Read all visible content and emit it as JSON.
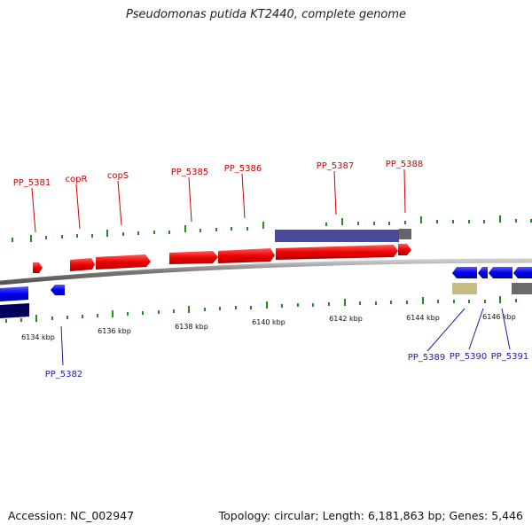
{
  "title": "Pseudomonas putida KT2440, complete genome",
  "footer": {
    "accession": "Accession: NC_002947",
    "summary": "Topology: circular; Length: 6,181,863 bp; Genes: 5,446"
  },
  "colors": {
    "forward_gene": "#ff0000",
    "reverse_gene": "#0000ff",
    "forward_label": "#cc0000",
    "reverse_label": "#1a1aaa",
    "backbone": "#888888",
    "ticks": "#228B22"
  },
  "scale_labels": [
    "6134 kbp",
    "6136 kbp",
    "6138 kbp",
    "6140 kbp",
    "6142 kbp",
    "6144 kbp",
    "6146 kbp"
  ],
  "forward_labels": [
    "PP_5381",
    "copR",
    "copS",
    "PP_5385",
    "PP_5386",
    "PP_5387",
    "PP_5388"
  ],
  "reverse_labels": [
    "PP_5382",
    "PP_5389",
    "PP_5390",
    "PP_5391"
  ]
}
